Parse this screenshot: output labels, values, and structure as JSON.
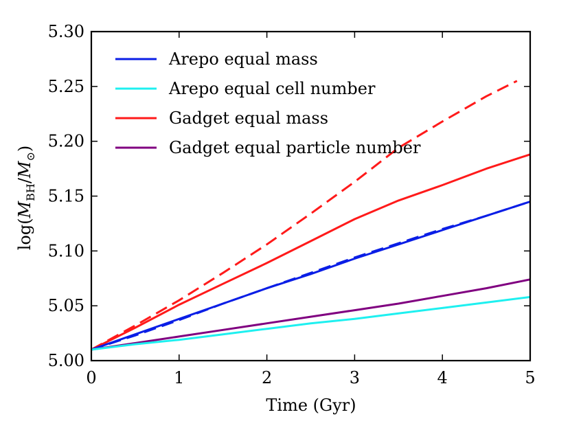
{
  "chart_data": {
    "type": "line",
    "xlabel": "Time (Gyr)",
    "ylabel_parts": {
      "log": "log(",
      "m": "M",
      "sub": "BH",
      "slash": "/",
      "msun": "M",
      "sun": "⊙",
      "close": ")"
    },
    "xlim": [
      0,
      5
    ],
    "ylim": [
      5.0,
      5.3
    ],
    "xticks": [
      0,
      1,
      2,
      3,
      4,
      5
    ],
    "xtick_labels": [
      "0",
      "1",
      "2",
      "3",
      "4",
      "5"
    ],
    "yticks": [
      5.0,
      5.05,
      5.1,
      5.15,
      5.2,
      5.25,
      5.3
    ],
    "ytick_labels": [
      "5.00",
      "5.05",
      "5.10",
      "5.15",
      "5.20",
      "5.25",
      "5.30"
    ],
    "grid": false,
    "legend_position": "top-left",
    "legend": [
      {
        "label": "Arepo equal mass",
        "color": "#0a1ee6"
      },
      {
        "label": "Arepo equal cell number",
        "color": "#1ef0f0"
      },
      {
        "label": "Gadget equal mass",
        "color": "#ff1a1a"
      },
      {
        "label": "Gadget equal particle number",
        "color": "#800080"
      }
    ],
    "series": [
      {
        "color": "#ff1a1a",
        "style": "dashed",
        "x": [
          0,
          0.5,
          1,
          1.5,
          2,
          2.5,
          3,
          3.5,
          4,
          4.5,
          4.85
        ],
        "y": [
          5.01,
          5.032,
          5.055,
          5.08,
          5.106,
          5.134,
          5.163,
          5.194,
          5.218,
          5.241,
          5.255
        ]
      },
      {
        "label_ref": 2,
        "color": "#ff1a1a",
        "style": "solid",
        "x": [
          0,
          0.5,
          1,
          1.5,
          2,
          2.5,
          3,
          3.5,
          4,
          4.5,
          5
        ],
        "y": [
          5.01,
          5.03,
          5.051,
          5.07,
          5.089,
          5.109,
          5.129,
          5.146,
          5.16,
          5.175,
          5.188
        ]
      },
      {
        "color": "#0a1ee6",
        "style": "dashed",
        "x": [
          0,
          0.5,
          1,
          1.5,
          2,
          2.5,
          3,
          3.5,
          4,
          4.5,
          5
        ],
        "y": [
          5.01,
          5.023,
          5.037,
          5.052,
          5.066,
          5.08,
          5.094,
          5.107,
          5.12,
          5.132,
          5.145
        ]
      },
      {
        "label_ref": 0,
        "color": "#0a1ee6",
        "style": "solid",
        "x": [
          0,
          0.5,
          1,
          1.5,
          2,
          2.5,
          3,
          3.5,
          4,
          4.5,
          5
        ],
        "y": [
          5.01,
          5.024,
          5.038,
          5.052,
          5.066,
          5.079,
          5.093,
          5.106,
          5.119,
          5.132,
          5.145
        ]
      },
      {
        "label_ref": 3,
        "color": "#800080",
        "style": "solid",
        "x": [
          0,
          0.5,
          1,
          1.5,
          2,
          2.5,
          3,
          3.5,
          4,
          4.5,
          5
        ],
        "y": [
          5.01,
          5.016,
          5.022,
          5.028,
          5.034,
          5.04,
          5.046,
          5.052,
          5.059,
          5.066,
          5.074
        ]
      },
      {
        "label_ref": 1,
        "color": "#1ef0f0",
        "style": "solid",
        "x": [
          0,
          0.5,
          1,
          1.5,
          2,
          2.5,
          3,
          3.5,
          4,
          4.5,
          5
        ],
        "y": [
          5.01,
          5.015,
          5.019,
          5.024,
          5.029,
          5.034,
          5.038,
          5.043,
          5.048,
          5.053,
          5.058
        ]
      }
    ]
  }
}
